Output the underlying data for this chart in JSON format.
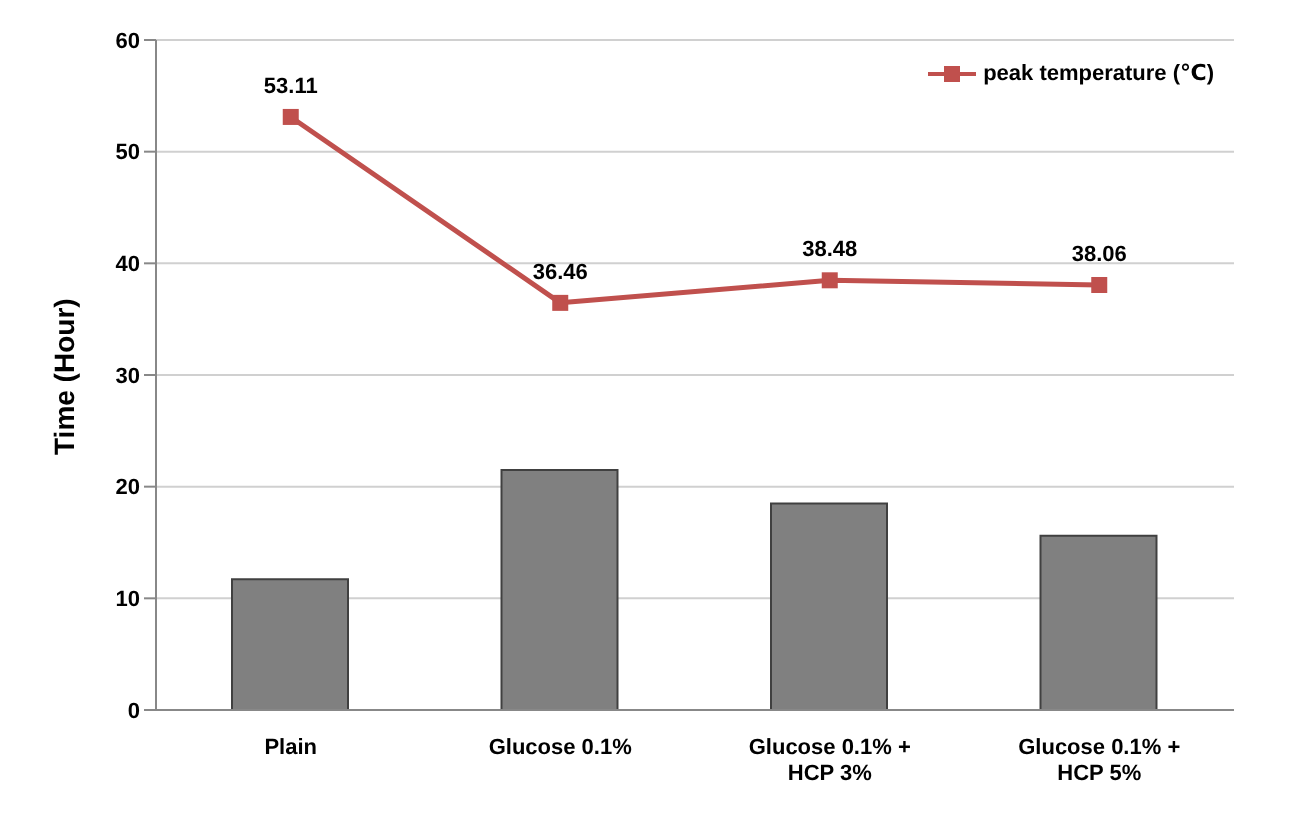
{
  "chart_data": {
    "type": "bar",
    "ylabel": "Time (Hour)",
    "categories": [
      "Plain",
      "Glucose 0.1%",
      "Glucose 0.1% + HCP 3%",
      "Glucose 0.1% + HCP 5%"
    ],
    "series": [
      {
        "color": "#808080",
        "values": [
          11.7,
          21.5,
          18.5,
          15.6
        ]
      },
      {
        "type": "line",
        "name": "peak temperature (℃)",
        "color": "#c0504d",
        "values": [
          53.11,
          36.46,
          38.48,
          38.06
        ],
        "value_labels": [
          "53.11",
          "36.46",
          "38.48",
          "38.06"
        ]
      }
    ],
    "ylim": [
      0,
      60
    ],
    "yticks": [
      0,
      10,
      20,
      30,
      40,
      50,
      60
    ],
    "grid": "y",
    "legend": "top right",
    "marker": "square",
    "line_style": "solid"
  }
}
